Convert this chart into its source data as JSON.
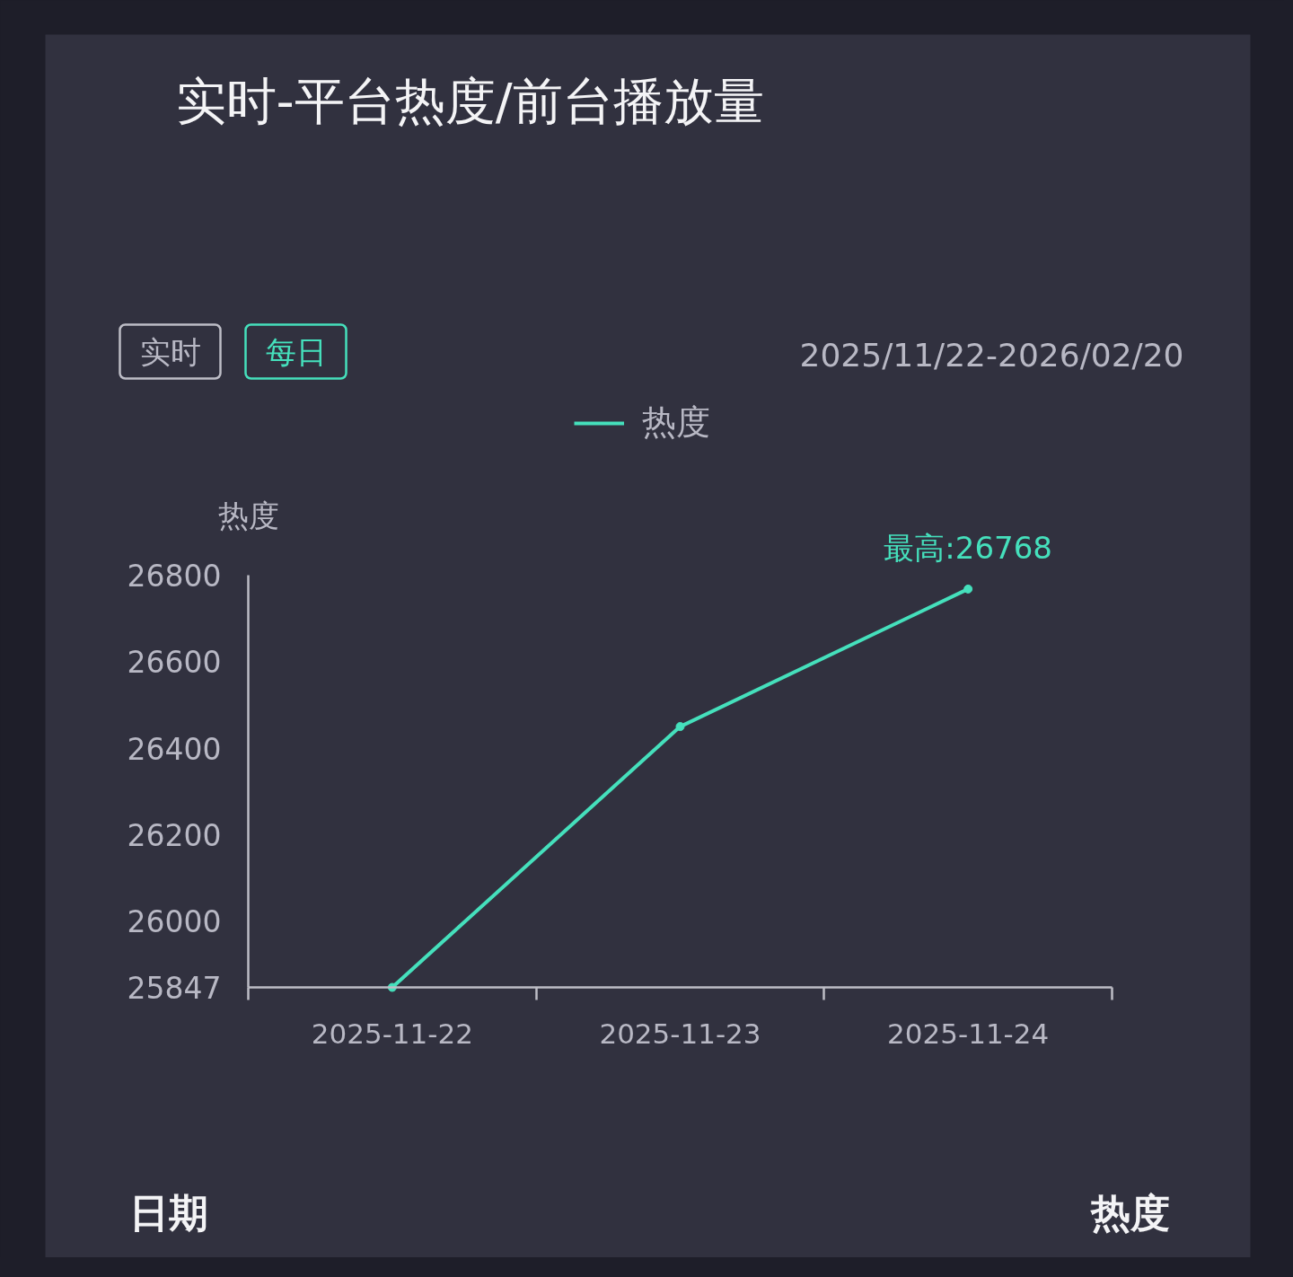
{
  "chart_data": {
    "type": "line",
    "title": "实时-平台热度/前台播放量",
    "ylabel": "热度",
    "categories": [
      "2025-11-22",
      "2025-11-23",
      "2025-11-24"
    ],
    "series": [
      {
        "name": "热度",
        "color": "#45e0bc",
        "values": [
          25847,
          26450,
          26768
        ]
      }
    ],
    "ylim": [
      25847,
      26800
    ],
    "yticks": [
      25847,
      26000,
      26200,
      26400,
      26600,
      26800
    ],
    "legend": "top",
    "marker": "circle",
    "line_style": "solid",
    "annotations": [
      "实时",
      "每日",
      "2025/11/22-2026/02/20",
      {
        "text": "最高:26768",
        "x": "2025-11-24",
        "y": 26768
      },
      "日期",
      "热度"
    ]
  }
}
